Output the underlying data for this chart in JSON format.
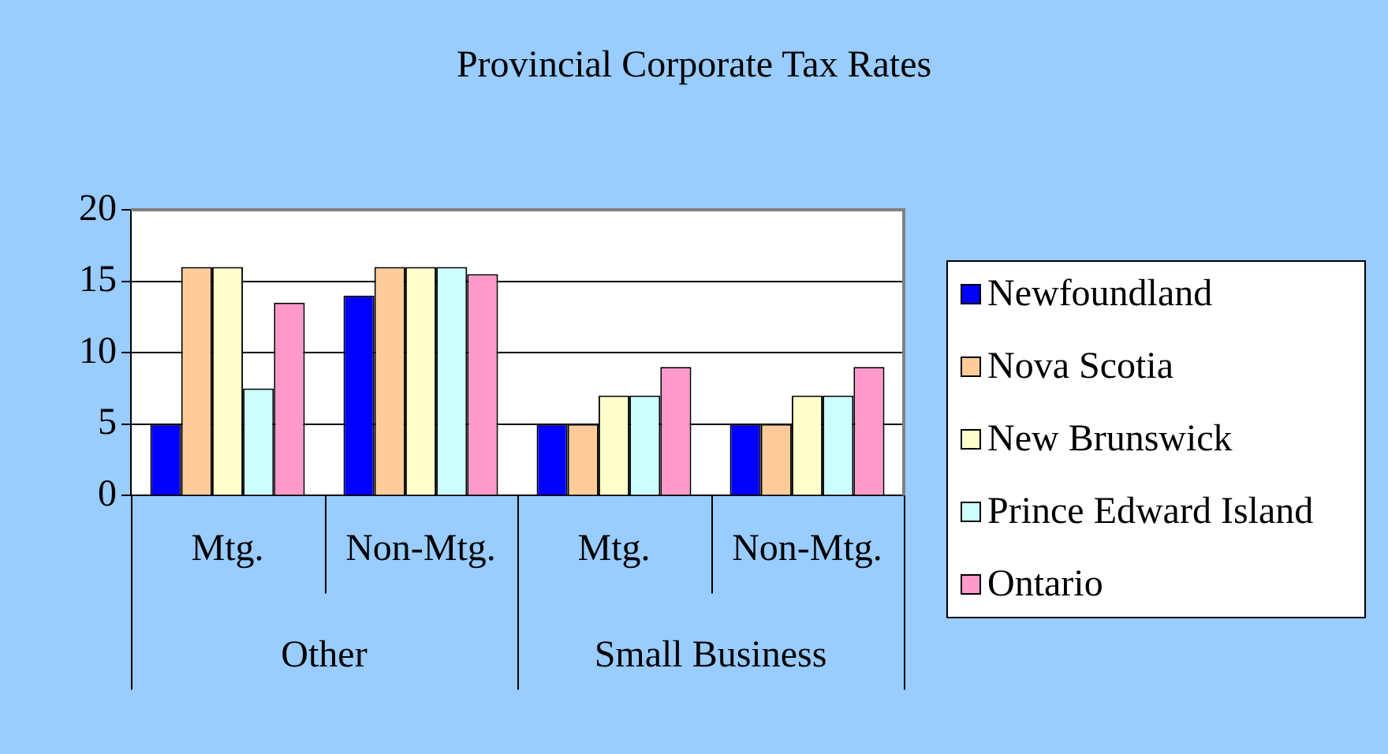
{
  "chart_data": {
    "type": "bar",
    "title": "Provincial Corporate Tax Rates",
    "categories": [
      "Mtg.",
      "Non-Mtg.",
      "Mtg.",
      "Non-Mtg."
    ],
    "series": [
      {
        "name": "Newfoundland",
        "color": "#0000ff",
        "values": [
          5,
          14,
          5,
          5
        ]
      },
      {
        "name": "Nova Scotia",
        "color": "#ffcc99",
        "values": [
          16,
          16,
          5,
          5
        ]
      },
      {
        "name": "New Brunswick",
        "color": "#ffffcc",
        "values": [
          16,
          16,
          7,
          7
        ]
      },
      {
        "name": "Prince Edward Island",
        "color": "#ccffff",
        "values": [
          7.5,
          16,
          7,
          7
        ]
      },
      {
        "name": "Ontario",
        "color": "#ff99cc",
        "values": [
          13.5,
          15.5,
          9,
          9
        ]
      }
    ],
    "annotations": [
      "Other",
      "Small Business"
    ],
    "ylim": [
      0,
      20
    ],
    "yticks": [
      0,
      5,
      10,
      15,
      20
    ],
    "grid": "y",
    "legend": "right"
  }
}
